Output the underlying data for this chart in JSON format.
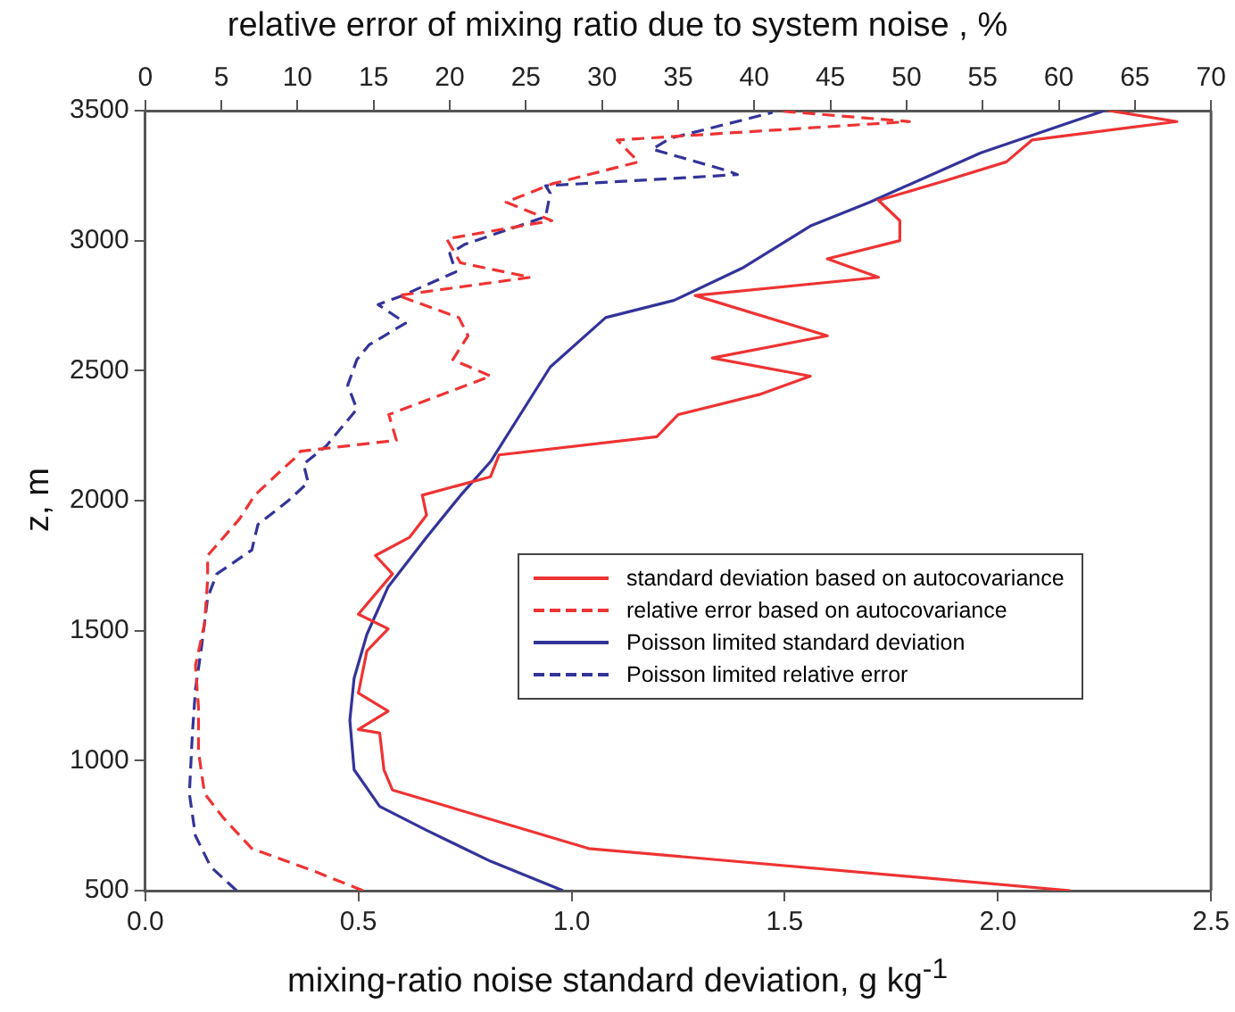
{
  "chart_data": {
    "type": "line",
    "xlabel": "mixing-ratio noise standard deviation, g kg$^{-1}$",
    "x2label": "relative error of mixing ratio due to system noise , %",
    "ylabel": "z, m",
    "xlim": [
      0,
      2.5
    ],
    "xticks": [
      {
        "value": 0,
        "label": "0.0"
      },
      0.5,
      {
        "value": 1,
        "label": "1.0"
      },
      1.5,
      {
        "value": 2,
        "label": "2.0"
      },
      2.5
    ],
    "x2lim": [
      0,
      70
    ],
    "x2ticks": [
      0,
      5,
      10,
      15,
      20,
      25,
      30,
      35,
      40,
      45,
      50,
      55,
      60,
      65,
      70
    ],
    "ylim": [
      500,
      3500
    ],
    "yticks": [
      500,
      1000,
      1500,
      2000,
      2500,
      3000,
      3500
    ],
    "grid": false,
    "legend": "right",
    "marker": "none",
    "series": [
      {
        "name": "standard deviation based on autocovariance",
        "color": "#ee3333",
        "line_style": "solid",
        "x": [
          2.17,
          1.04,
          0.58,
          0.56,
          0.55,
          0.5,
          0.57,
          0.5,
          0.52,
          0.57,
          0.5,
          0.58,
          0.54,
          0.62,
          0.66,
          0.65,
          0.81,
          0.83,
          1.2,
          1.25,
          1.44,
          1.56,
          1.33,
          1.6,
          1.29,
          1.72,
          1.6,
          1.77,
          1.77,
          1.72,
          1.88,
          2.02,
          2.08,
          2.42,
          2.26
        ],
        "values": [
          500,
          662,
          887,
          965,
          1106,
          1120,
          1190,
          1260,
          1422,
          1507,
          1563,
          1718,
          1789,
          1859,
          1944,
          2021,
          2092,
          2176,
          2246,
          2331,
          2408,
          2479,
          2549,
          2634,
          2789,
          2859,
          2930,
          3000,
          3077,
          3155,
          3232,
          3303,
          3387,
          3458,
          3500
        ]
      },
      {
        "name": "relative error based on autocovariance",
        "color": "#ee3333",
        "line_style": "dashed",
        "axis": "x2",
        "x": [
          14.3,
          11.3,
          7.0,
          5.1,
          3.9,
          3.5,
          3.5,
          3.3,
          3.9,
          4.1,
          4.1,
          6.2,
          7.2,
          9.0,
          9.8,
          10.2,
          16.5,
          16.0,
          22.7,
          20.2,
          21.2,
          20.6,
          16.6,
          25.3,
          20.7,
          19.8,
          26.7,
          23.7,
          26.7,
          32.4,
          31.0,
          50.2,
          41.4
        ],
        "values": [
          500,
          570,
          662,
          782,
          873,
          1035,
          1204,
          1366,
          1528,
          1697,
          1789,
          1930,
          2021,
          2120,
          2162,
          2190,
          2232,
          2331,
          2479,
          2542,
          2634,
          2704,
          2789,
          2859,
          2915,
          3007,
          3077,
          3148,
          3218,
          3303,
          3387,
          3458,
          3500
        ]
      },
      {
        "name": "Poisson limited standard deviation",
        "color": "#333399",
        "line_style": "solid",
        "x": [
          0.98,
          0.81,
          0.66,
          0.55,
          0.49,
          0.48,
          0.49,
          0.52,
          0.57,
          0.66,
          0.74,
          0.81,
          0.95,
          1.08,
          1.24,
          1.4,
          1.56,
          1.7,
          1.96,
          2.25
        ],
        "values": [
          500,
          613,
          732,
          824,
          965,
          1155,
          1317,
          1486,
          1669,
          1859,
          2021,
          2150,
          2514,
          2704,
          2770,
          2894,
          3056,
          3148,
          3338,
          3500
        ]
      },
      {
        "name": "Poisson limited relative error",
        "color": "#333399",
        "line_style": "dashed",
        "axis": "x2",
        "x": [
          6.0,
          4.3,
          3.3,
          2.9,
          3.1,
          3.3,
          3.7,
          4.1,
          4.7,
          7.0,
          7.4,
          9.4,
          10.7,
          10.4,
          11.9,
          13.9,
          13.3,
          13.9,
          14.7,
          17.1,
          15.3,
          16.9,
          20.4,
          20.0,
          21.0,
          26.3,
          26.6,
          26.3,
          38.9,
          38.3,
          33.3,
          34.5,
          41.2
        ],
        "values": [
          500,
          592,
          711,
          873,
          1106,
          1275,
          1437,
          1627,
          1718,
          1810,
          1908,
          2000,
          2070,
          2141,
          2211,
          2352,
          2444,
          2542,
          2599,
          2683,
          2754,
          2789,
          2880,
          2951,
          2986,
          3092,
          3183,
          3211,
          3254,
          3268,
          3352,
          3394,
          3493
        ]
      }
    ]
  }
}
